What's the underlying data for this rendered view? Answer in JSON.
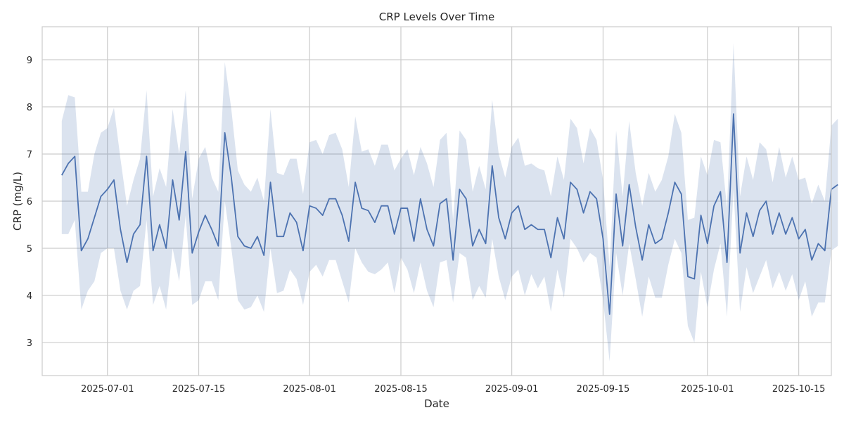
{
  "chart_data": {
    "type": "line",
    "title": "CRP Levels Over Time",
    "xlabel": "Date",
    "ylabel": "CRP (mg/L)",
    "grid": true,
    "band": "confidence interval",
    "colors": {
      "line": "#4c72b0",
      "band": "#4c72b0",
      "grid": "#cccccc",
      "frame": "#cccccc"
    },
    "x_ticks": [
      "2025-07-01",
      "2025-07-15",
      "2025-08-01",
      "2025-08-15",
      "2025-09-01",
      "2025-09-15",
      "2025-10-01",
      "2025-10-15"
    ],
    "y_ticks": [
      3,
      4,
      5,
      6,
      7,
      8,
      9
    ],
    "xlim": [
      "2025-06-21",
      "2025-10-20"
    ],
    "ylim": [
      2.3,
      9.7
    ],
    "series": [
      {
        "x_start": "2025-06-24",
        "x_step_days": 1,
        "values": [
          6.55,
          6.8,
          6.95,
          4.95,
          5.2,
          5.65,
          6.1,
          6.25,
          6.45,
          5.4,
          4.7,
          5.3,
          5.5,
          6.95,
          4.95,
          5.5,
          5.0,
          6.45,
          5.6,
          7.05,
          4.9,
          5.35,
          5.7,
          5.4,
          5.05,
          7.45,
          6.5,
          5.25,
          5.05,
          5.0,
          5.25,
          4.85,
          6.4,
          5.25,
          5.25,
          5.75,
          5.55,
          4.95,
          5.9,
          5.85,
          5.7,
          6.05,
          6.05,
          5.7,
          5.15,
          6.4,
          5.85,
          5.8,
          5.55,
          5.9,
          5.9,
          5.3,
          5.85,
          5.85,
          5.15,
          6.05,
          5.4,
          5.05,
          5.95,
          6.05,
          4.75,
          6.25,
          6.05,
          5.05,
          5.4,
          5.1,
          6.75,
          5.65,
          5.2,
          5.75,
          5.9,
          5.4,
          5.5,
          5.4,
          5.4,
          4.8,
          5.65,
          5.2,
          6.4,
          6.25,
          5.75,
          6.2,
          6.05,
          5.2,
          3.6,
          6.15,
          5.05,
          6.35,
          5.45,
          4.75,
          5.5,
          5.1,
          5.2,
          5.75,
          6.4,
          6.15,
          4.4,
          4.35,
          5.7,
          5.1,
          5.9,
          6.2,
          4.7,
          7.85,
          4.9,
          5.75,
          5.25,
          5.8,
          6.0,
          5.3,
          5.75,
          5.3,
          5.65,
          5.2,
          5.4,
          4.75,
          5.1,
          4.95,
          6.25,
          6.35
        ],
        "lower": [
          5.3,
          5.3,
          5.6,
          3.7,
          4.1,
          4.3,
          4.9,
          5.0,
          5.0,
          4.1,
          3.7,
          4.1,
          4.2,
          5.6,
          3.8,
          4.2,
          3.7,
          5.0,
          4.3,
          5.7,
          3.8,
          3.9,
          4.3,
          4.3,
          3.9,
          6.0,
          5.0,
          3.9,
          3.7,
          3.75,
          4.0,
          3.65,
          5.0,
          4.05,
          4.1,
          4.55,
          4.35,
          3.8,
          4.5,
          4.65,
          4.4,
          4.75,
          4.75,
          4.3,
          3.85,
          5.0,
          4.7,
          4.5,
          4.45,
          4.55,
          4.7,
          4.05,
          4.8,
          4.55,
          4.05,
          4.7,
          4.1,
          3.75,
          4.7,
          4.75,
          3.85,
          4.9,
          4.8,
          3.9,
          4.2,
          3.95,
          5.2,
          4.4,
          3.9,
          4.4,
          4.55,
          4.0,
          4.45,
          4.15,
          4.4,
          3.65,
          4.55,
          3.95,
          5.2,
          5.0,
          4.7,
          4.9,
          4.8,
          3.9,
          2.6,
          4.9,
          4.0,
          5.1,
          4.35,
          3.55,
          4.4,
          3.95,
          3.95,
          4.65,
          5.2,
          4.9,
          3.35,
          3.0,
          4.5,
          3.75,
          4.55,
          5.1,
          3.55,
          6.25,
          3.65,
          4.6,
          4.05,
          4.4,
          4.75,
          4.15,
          4.5,
          4.1,
          4.45,
          3.9,
          4.3,
          3.55,
          3.85,
          3.85,
          4.95,
          5.05
        ],
        "upper": [
          7.7,
          8.25,
          8.2,
          6.2,
          6.2,
          7.0,
          7.45,
          7.55,
          7.98,
          6.9,
          5.9,
          6.45,
          6.9,
          8.35,
          6.1,
          6.7,
          6.3,
          7.95,
          7.0,
          8.35,
          6.05,
          6.9,
          7.15,
          6.5,
          6.2,
          8.95,
          7.95,
          6.65,
          6.35,
          6.2,
          6.5,
          6.0,
          7.95,
          6.6,
          6.55,
          6.9,
          6.9,
          6.15,
          7.25,
          7.3,
          7.0,
          7.4,
          7.45,
          7.1,
          6.3,
          7.8,
          7.05,
          7.1,
          6.75,
          7.2,
          7.2,
          6.65,
          6.9,
          7.1,
          6.55,
          7.15,
          6.8,
          6.3,
          7.3,
          7.45,
          5.6,
          7.5,
          7.3,
          6.2,
          6.75,
          6.25,
          8.15,
          7.0,
          6.5,
          7.15,
          7.35,
          6.75,
          6.8,
          6.7,
          6.65,
          6.1,
          6.95,
          6.45,
          7.75,
          7.55,
          6.8,
          7.55,
          7.3,
          6.45,
          4.6,
          7.5,
          6.1,
          7.7,
          6.6,
          5.9,
          6.6,
          6.2,
          6.45,
          6.95,
          7.85,
          7.45,
          5.6,
          5.65,
          6.95,
          6.55,
          7.3,
          7.25,
          5.85,
          9.35,
          6.1,
          6.95,
          6.45,
          7.25,
          7.1,
          6.4,
          7.15,
          6.5,
          6.95,
          6.45,
          6.5,
          5.95,
          6.35,
          6.0,
          7.6,
          7.75
        ]
      }
    ]
  }
}
